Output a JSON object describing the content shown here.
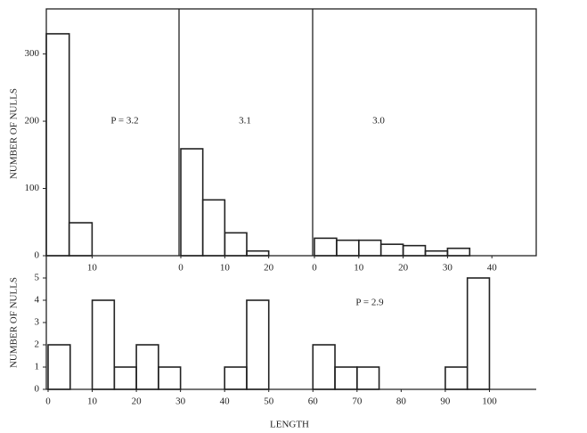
{
  "chart_data": [
    {
      "type": "histogram",
      "title": "P = 3.2",
      "ylabel": "NUMBER OF NULLS",
      "bins": [
        0,
        5,
        10
      ],
      "counts": [
        330,
        49
      ],
      "xlim": [
        0,
        29
      ],
      "xticks": [
        10
      ],
      "ylim": [
        0,
        367
      ],
      "yticks": [
        0,
        100,
        200,
        300
      ],
      "color": "#222"
    },
    {
      "type": "histogram",
      "title": "3.1",
      "bins": [
        0,
        5,
        10,
        15,
        20
      ],
      "counts": [
        159,
        83,
        34,
        7
      ],
      "xlim": [
        0,
        30
      ],
      "xticks": [
        0,
        10,
        20
      ],
      "ylim": [
        0,
        367
      ],
      "color": "#222"
    },
    {
      "type": "histogram",
      "title": "3.0",
      "bins": [
        0,
        5,
        10,
        15,
        20,
        25,
        30,
        35
      ],
      "counts": [
        26,
        23,
        23,
        17,
        15,
        7,
        11
      ],
      "xlim": [
        0,
        50
      ],
      "xticks": [
        0,
        10,
        20,
        30,
        40
      ],
      "ylim": [
        0,
        367
      ],
      "color": "#222"
    },
    {
      "type": "histogram",
      "title": "P = 2.9",
      "ylabel": "NUMBER OF NULLS",
      "xlabel": "LENGTH",
      "bins": [
        0,
        5,
        10,
        15,
        20,
        25,
        30,
        35,
        40,
        45,
        50,
        55,
        60,
        65,
        70,
        75,
        80,
        85,
        90,
        95,
        100
      ],
      "counts": [
        2,
        0,
        4,
        1,
        2,
        1,
        0,
        0,
        1,
        4,
        0,
        0,
        2,
        1,
        1,
        0,
        0,
        0,
        1,
        5
      ],
      "xlim": [
        0,
        110
      ],
      "xticks": [
        0,
        10,
        20,
        30,
        40,
        50,
        60,
        70,
        80,
        90,
        100
      ],
      "ylim": [
        0,
        6
      ],
      "yticks": [
        0,
        1,
        2,
        3,
        4,
        5
      ],
      "color": "#222"
    }
  ]
}
